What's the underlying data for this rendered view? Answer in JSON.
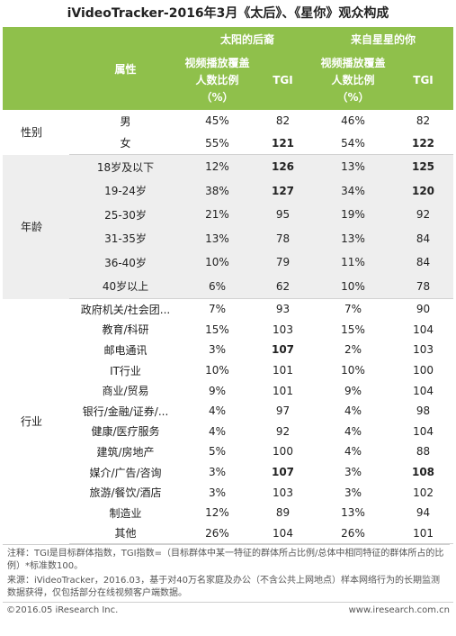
{
  "title": "iVideoTracker-2016年3月《太后》、《星你》观众构成",
  "header": {
    "attr_label": "属性",
    "show1": "太阳的后裔",
    "show2": "来自星星的你",
    "metric_label": "视频播放覆盖人数比例（%）",
    "metric_line1": "视频播放覆盖",
    "metric_line2": "人数比例",
    "metric_line3": "（%）",
    "tgi_label": "TGI"
  },
  "groups": [
    {
      "name": "性别",
      "rows": [
        {
          "label": "男",
          "p1": "45%",
          "t1": "82",
          "p2": "46%",
          "t2": "82"
        },
        {
          "label": "女",
          "p1": "55%",
          "t1": "121",
          "p2": "54%",
          "t2": "122"
        }
      ]
    },
    {
      "name": "年龄",
      "rows": [
        {
          "label": "18岁及以下",
          "p1": "12%",
          "t1": "126",
          "p2": "13%",
          "t2": "125"
        },
        {
          "label": "19-24岁",
          "p1": "38%",
          "t1": "127",
          "p2": "34%",
          "t2": "120"
        },
        {
          "label": "25-30岁",
          "p1": "21%",
          "t1": "95",
          "p2": "19%",
          "t2": "92"
        },
        {
          "label": "31-35岁",
          "p1": "13%",
          "t1": "78",
          "p2": "13%",
          "t2": "84"
        },
        {
          "label": "36-40岁",
          "p1": "10%",
          "t1": "79",
          "p2": "11%",
          "t2": "84"
        },
        {
          "label": "40岁以上",
          "p1": "6%",
          "t1": "62",
          "p2": "10%",
          "t2": "78"
        }
      ]
    },
    {
      "name": "行业",
      "rows": [
        {
          "label": "政府机关/社会团...",
          "p1": "7%",
          "t1": "93",
          "p2": "7%",
          "t2": "90"
        },
        {
          "label": "教育/科研",
          "p1": "15%",
          "t1": "103",
          "p2": "15%",
          "t2": "104"
        },
        {
          "label": "邮电通讯",
          "p1": "3%",
          "t1": "107",
          "p2": "2%",
          "t2": "103"
        },
        {
          "label": "IT行业",
          "p1": "10%",
          "t1": "101",
          "p2": "10%",
          "t2": "100"
        },
        {
          "label": "商业/贸易",
          "p1": "9%",
          "t1": "101",
          "p2": "9%",
          "t2": "104"
        },
        {
          "label": "银行/金融/证券/...",
          "p1": "4%",
          "t1": "97",
          "p2": "4%",
          "t2": "98"
        },
        {
          "label": "健康/医疗服务",
          "p1": "4%",
          "t1": "92",
          "p2": "4%",
          "t2": "104"
        },
        {
          "label": "建筑/房地产",
          "p1": "5%",
          "t1": "100",
          "p2": "4%",
          "t2": "88"
        },
        {
          "label": "媒介/广告/咨询",
          "p1": "3%",
          "t1": "107",
          "p2": "3%",
          "t2": "108"
        },
        {
          "label": "旅游/餐饮/酒店",
          "p1": "3%",
          "t1": "103",
          "p2": "3%",
          "t2": "102"
        },
        {
          "label": "制造业",
          "p1": "12%",
          "t1": "89",
          "p2": "13%",
          "t2": "94"
        },
        {
          "label": "其他",
          "p1": "26%",
          "t1": "104",
          "p2": "26%",
          "t2": "101"
        }
      ]
    }
  ],
  "bold_threshold": 105,
  "notes": {
    "note": "注释：TGI是目标群体指数，TGI指数=（目标群体中某一特征的群体所占比例/总体中相同特征的群体所占的比例）*标准数100。",
    "source": "来源：iVideoTracker，2016.03，基于对40万名家庭及办公（不含公共上网地点）样本网络行为的长期监测数据获得，仅包括部分在线视频客户端数据。"
  },
  "footer": {
    "copyright": "©2016.05 iResearch Inc.",
    "website": "www.iresearch.com.cn"
  }
}
